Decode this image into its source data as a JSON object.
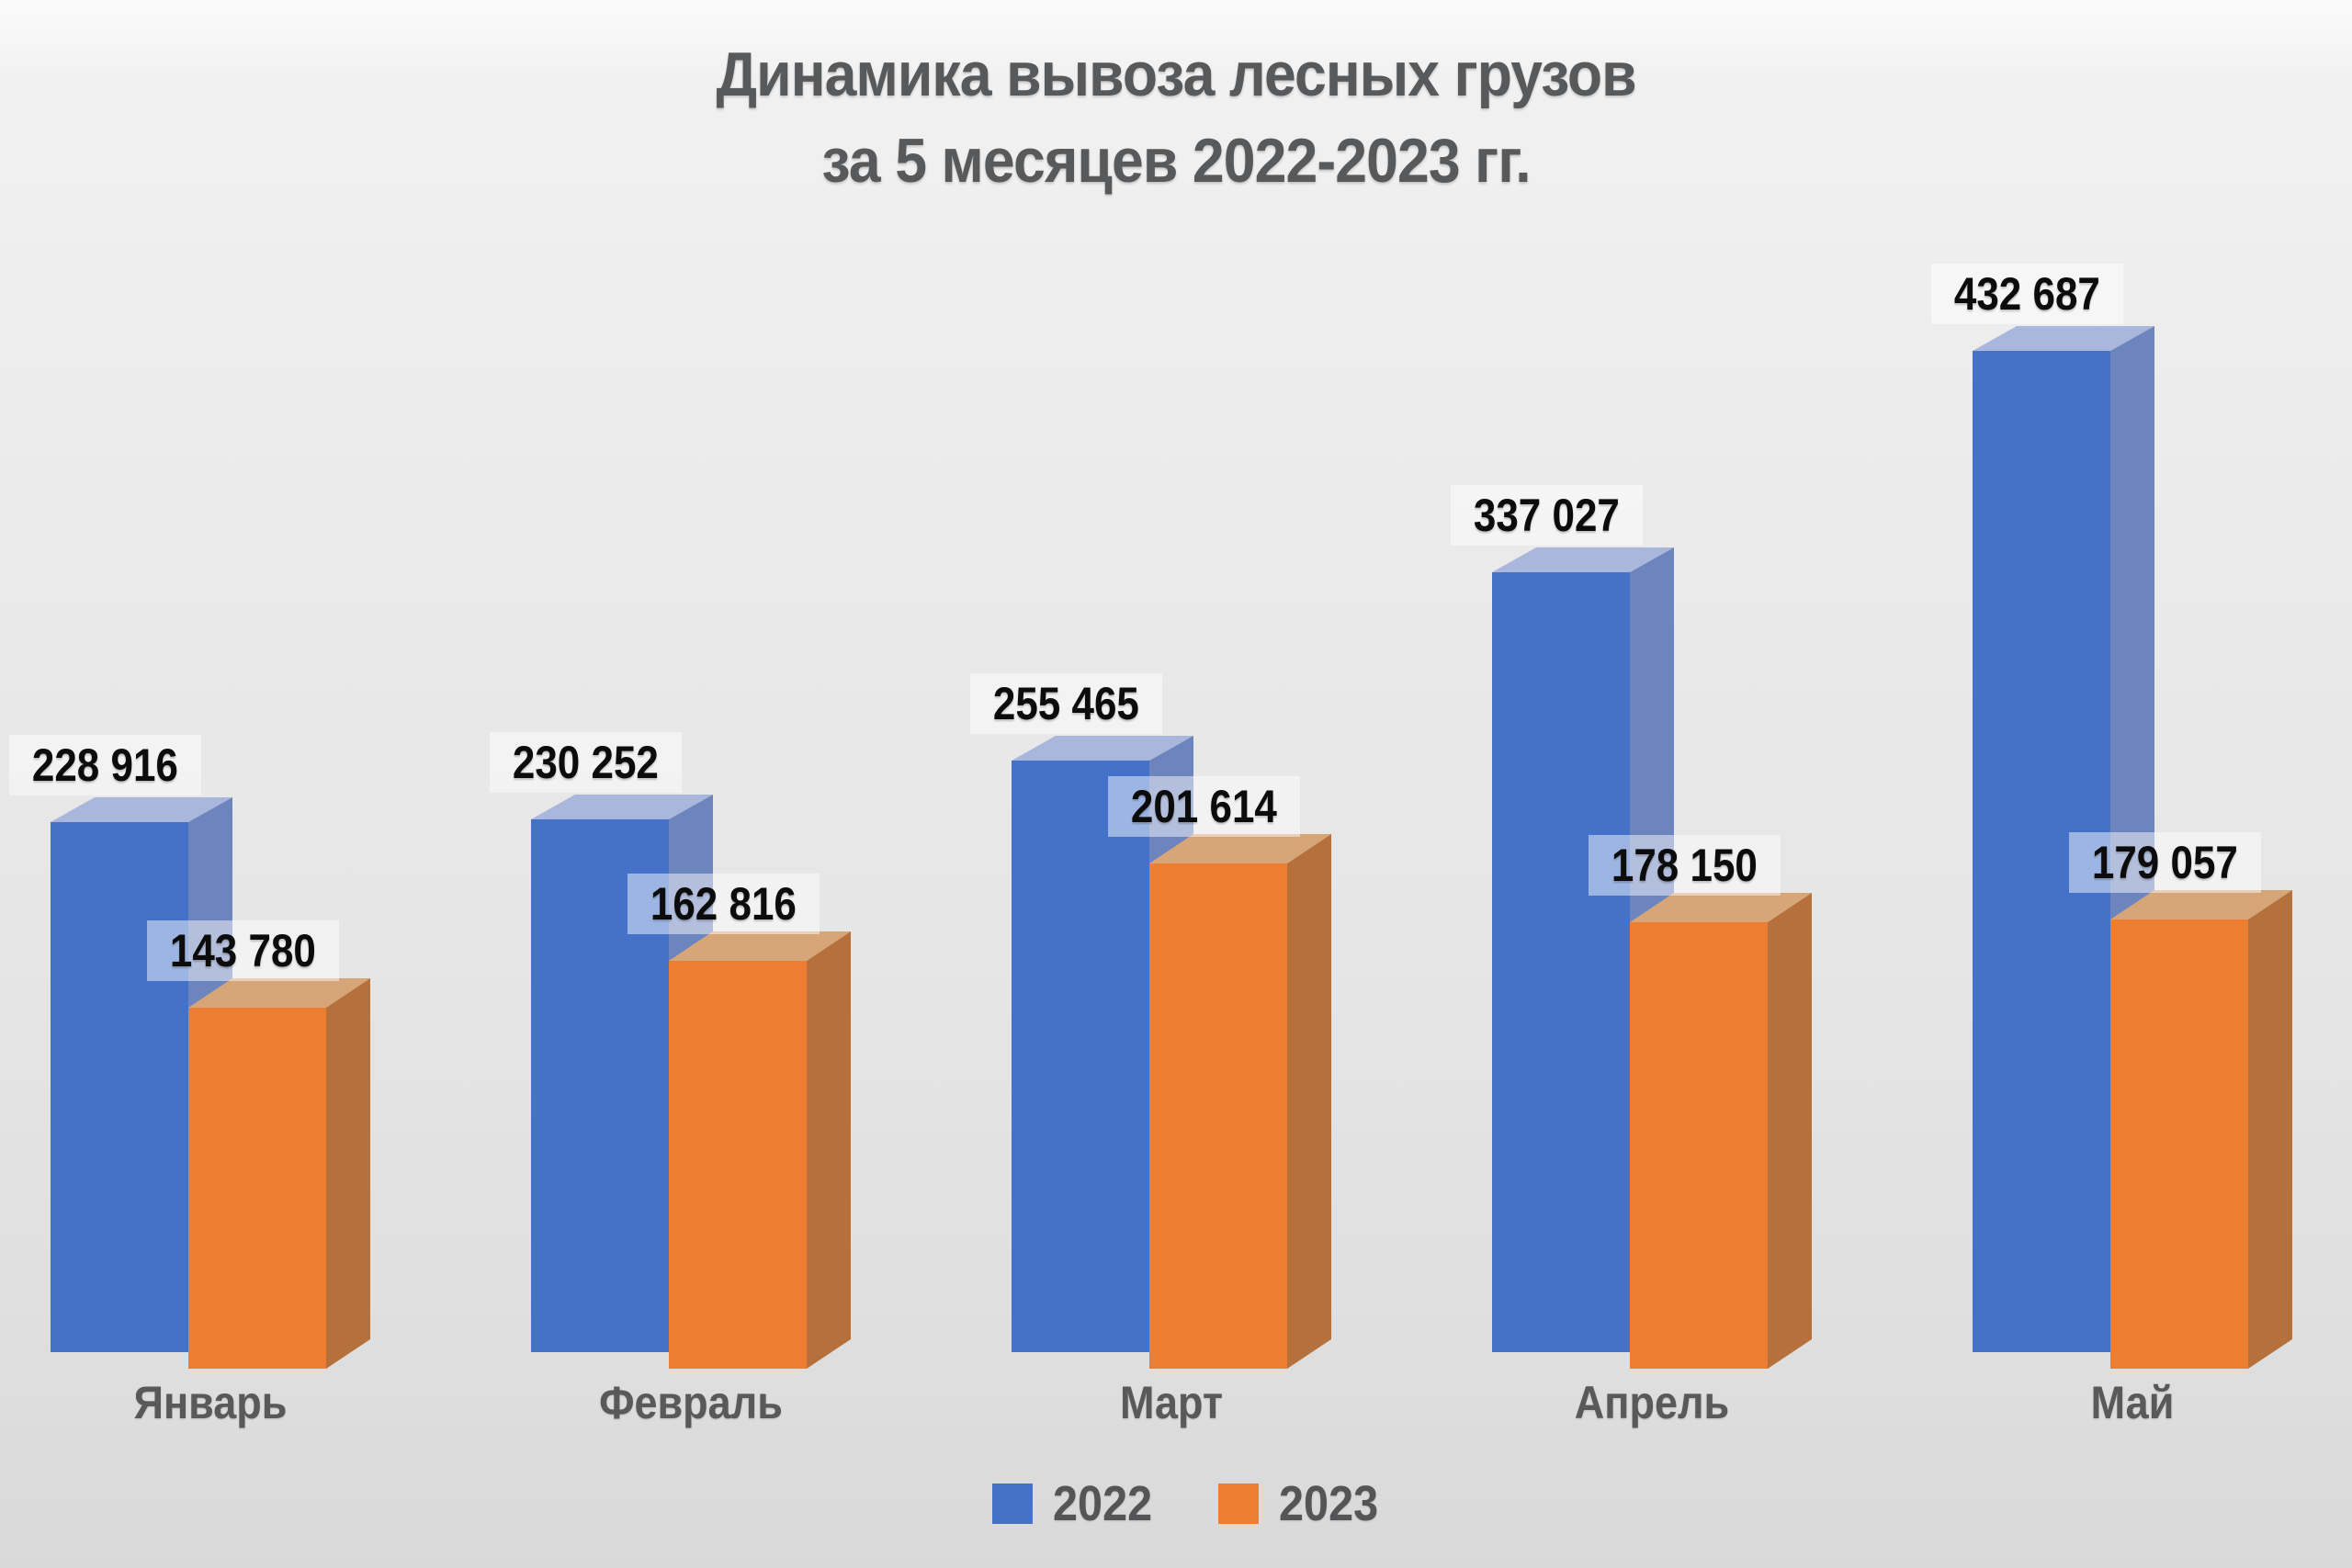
{
  "title": {
    "line1": "Динамика вывоза лесных грузов",
    "line2": "за 5 месяцев 2022-2023 гг."
  },
  "chart_data": {
    "type": "bar",
    "projection": "3d",
    "title": "Динамика вывоза лесных грузов за 5 месяцев 2022-2023 гг.",
    "categories": [
      "Январь",
      "Февраль",
      "Март",
      "Апрель",
      "Май"
    ],
    "series": [
      {
        "name": "2022",
        "color": "#4472C8",
        "top_color": "#A8B7DB",
        "side_color": "#6D85BD",
        "values": [
          228916,
          230252,
          255465,
          337027,
          432687
        ],
        "labels": [
          "228 916",
          "230 252",
          "255 465",
          "337 027",
          "432 687"
        ]
      },
      {
        "name": "2023",
        "color": "#ED7D31",
        "top_color": "#D7A678",
        "side_color": "#B5703C",
        "values": [
          143780,
          162816,
          201614,
          178150,
          179057
        ],
        "labels": [
          "143 780",
          "162 816",
          "201 614",
          "178 150",
          "179 057"
        ]
      }
    ],
    "xlabel": "",
    "ylabel": "",
    "value_axis_visible": false,
    "grid": false,
    "legend_position": "bottom",
    "data_labels": true,
    "background_color": "#e8e8e8",
    "text_color": "#595959",
    "label_text_color": "#0c0c0c"
  }
}
